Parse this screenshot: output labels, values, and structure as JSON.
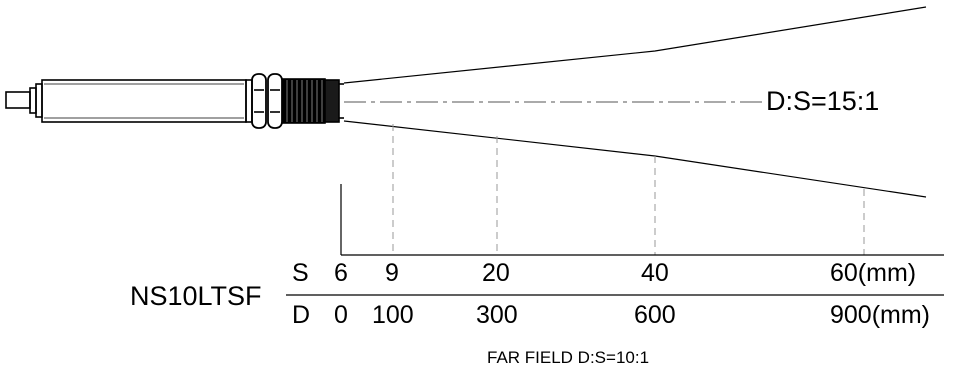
{
  "model": "NS10LTSF",
  "ratio_label": "D:S=15:1",
  "s_row": {
    "letter": "S",
    "values": [
      "6",
      "9",
      "20",
      "40",
      "60(mm)"
    ]
  },
  "d_row": {
    "letter": "D",
    "values": [
      "0",
      "100",
      "300",
      "600",
      "900(mm)"
    ]
  },
  "far_field_label": "FAR FIELD D:S=10:1",
  "colors": {
    "ink": "#000000",
    "guide": "#8c8c8c",
    "background": "#ffffff"
  }
}
